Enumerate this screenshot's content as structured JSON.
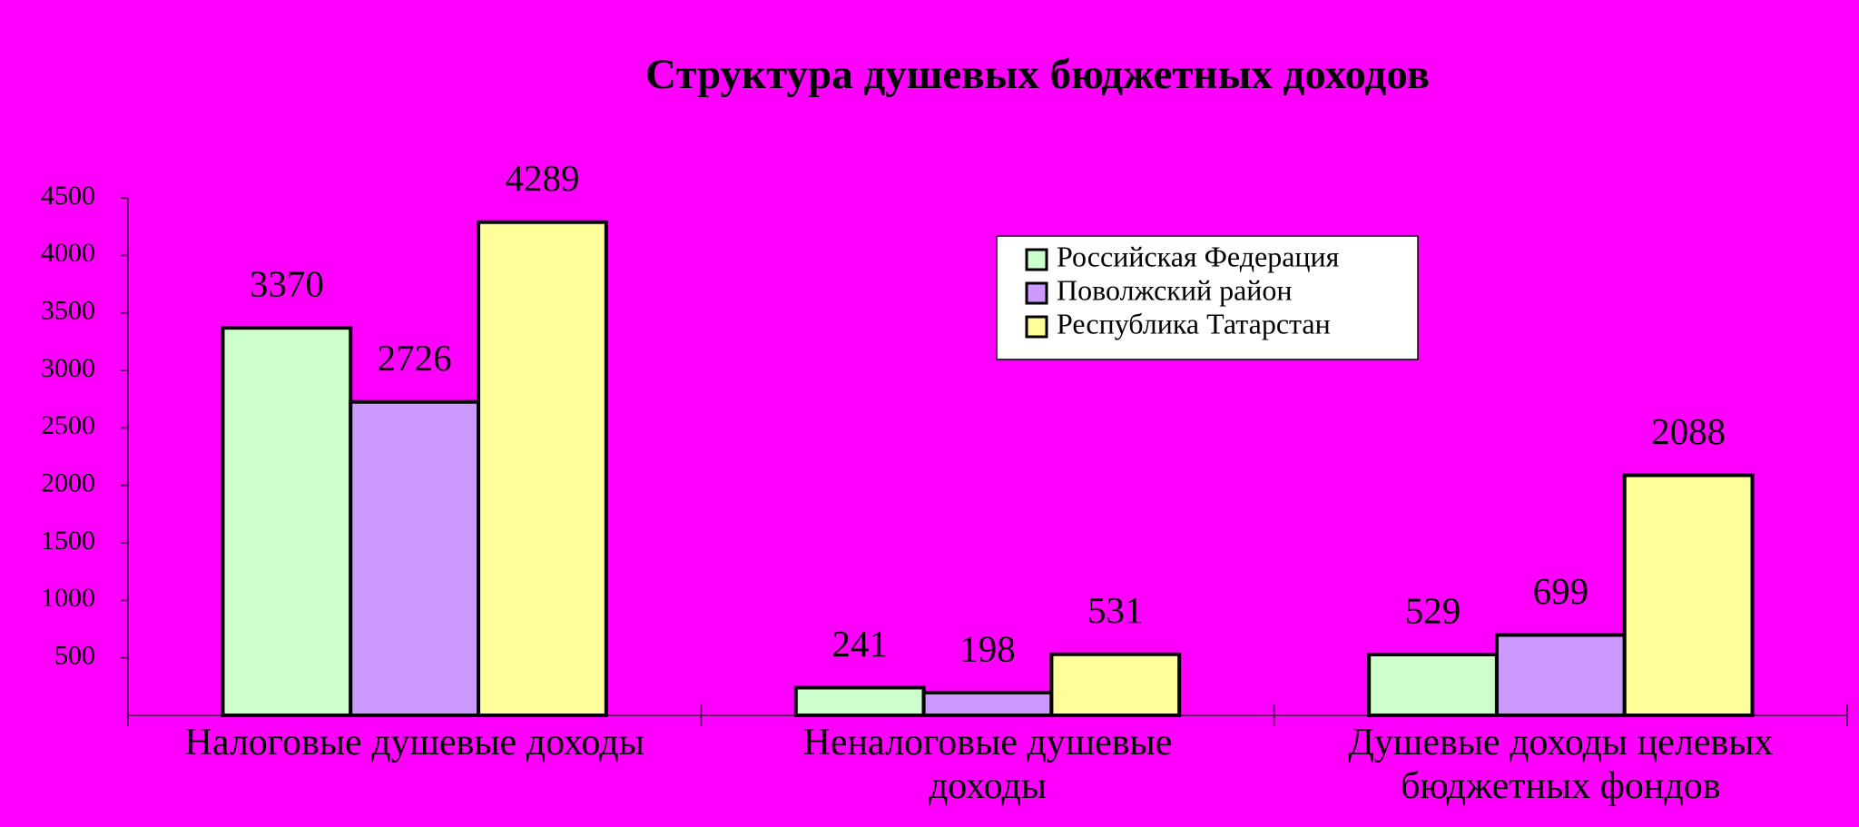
{
  "chart_data": {
    "type": "bar",
    "title": "Структура душевых бюджетных доходов",
    "categories": [
      "Налоговые душевые доходы",
      "Неналоговые душевые доходы",
      "Душевые доходы целевых бюджетных фондов"
    ],
    "series": [
      {
        "name": "Российская Федерация",
        "color": "#ccffcc",
        "values": [
          3370,
          241,
          529
        ]
      },
      {
        "name": "Поволжский район",
        "color": "#cc99ff",
        "values": [
          2726,
          198,
          699
        ]
      },
      {
        "name": "Республика Татарстан",
        "color": "#ffff99",
        "values": [
          4289,
          531,
          2088
        ]
      }
    ],
    "ylim": [
      0,
      4500
    ],
    "yticks": [
      500,
      1000,
      1500,
      2000,
      2500,
      3000,
      3500,
      4000,
      4500
    ],
    "grid": false,
    "legend": "upper right",
    "background": "#ff00ff"
  }
}
